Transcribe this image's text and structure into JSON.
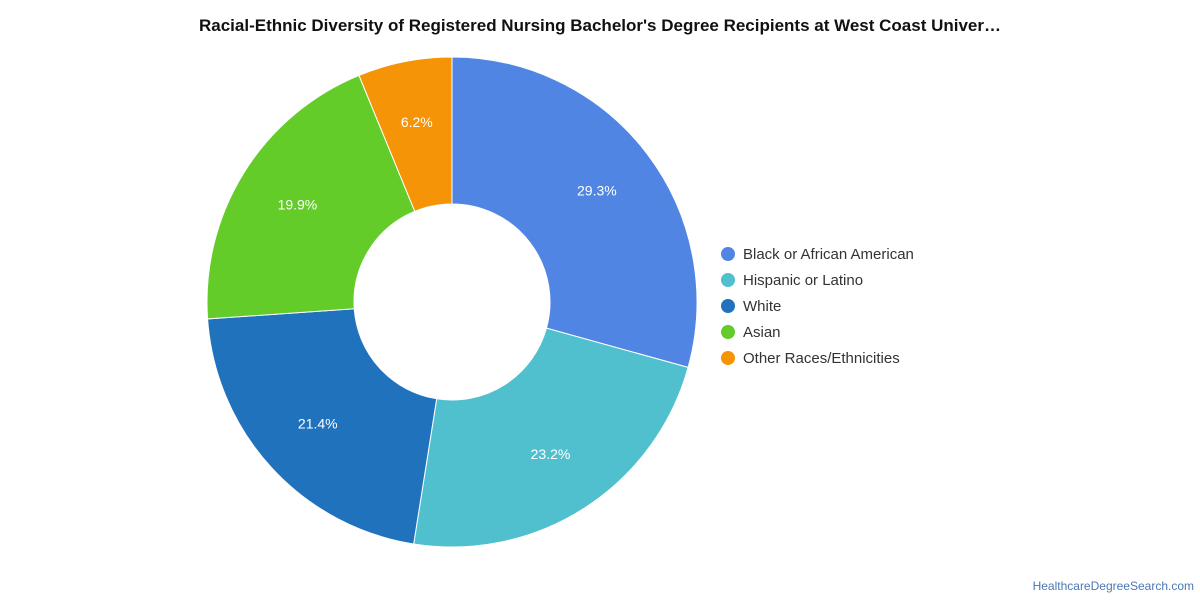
{
  "chart_data": {
    "type": "pie",
    "title": "Racial-Ethnic Diversity of Registered Nursing Bachelor's Degree Recipients at West Coast Univer…",
    "legend_position": "right",
    "series": [
      {
        "name": "Black or African American",
        "value": 29.3,
        "label": "29.3%",
        "color": "#5185e3"
      },
      {
        "name": "Hispanic or Latino",
        "value": 23.2,
        "label": "23.2%",
        "color": "#51c0ce"
      },
      {
        "name": "White",
        "value": 21.4,
        "label": "21.4%",
        "color": "#1f72bb"
      },
      {
        "name": "Asian",
        "value": 19.9,
        "label": "19.9%",
        "color": "#63cc29"
      },
      {
        "name": "Other Races/Ethnicities",
        "value": 6.2,
        "label": "6.2%",
        "color": "#f59406"
      }
    ]
  },
  "footer": {
    "source": "HealthcareDegreeSearch.com"
  }
}
